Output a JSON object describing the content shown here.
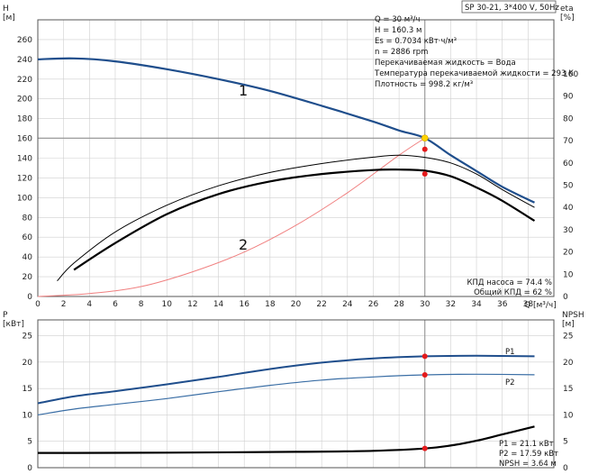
{
  "title_box": "SP 30-21, 3*400 V, 50Hz",
  "info_lines": [
    "Q = 30 м³/ч",
    "H = 160.3 м",
    "Es = 0.7034 кВт·ч/м³",
    "n = 2886 rpm",
    "Перекачиваемая жидкость = Вода",
    "Температура перекачиваемой жидкости = 293 K",
    "Плотность = 998.2 кг/м³"
  ],
  "efficiency_notes": [
    "КПД насоса = 74.4 %",
    "Общий КПД = 62 %"
  ],
  "power_notes": [
    "P1 = 21.1 кВт",
    "P2 = 17.59 кВт",
    "NPSH = 3.64 м"
  ],
  "curve_labels": [
    "1",
    "2"
  ],
  "colors": {
    "head": "#1f4e8c",
    "power": "#2b5d9a",
    "efficiency": "#000000",
    "system": "#f08080",
    "duty_point": "#e41a1c",
    "duty_marker_top": "#ffd400",
    "grid": "#888888"
  },
  "chart_data": [
    {
      "type": "line",
      "ylabel_left": "H",
      "ylabel_left_unit": "[м]",
      "ylabel_right": "eta",
      "ylabel_right_unit": "[%]",
      "xlabel": "Q [м³/ч]",
      "x_ticks": [
        "0",
        "2",
        "4",
        "6",
        "8",
        "10",
        "12",
        "14",
        "16",
        "18",
        "20",
        "22",
        "24",
        "26",
        "28",
        "30",
        "32",
        "34",
        "36",
        "38"
      ],
      "y_left_ticks": [
        "0",
        "20",
        "40",
        "60",
        "80",
        "100",
        "120",
        "140",
        "160",
        "180",
        "200",
        "220",
        "240",
        "260"
      ],
      "y_right_ticks": [
        "0",
        "10",
        "20",
        "30",
        "40",
        "50",
        "60",
        "70",
        "80",
        "90",
        "100"
      ],
      "xlim": [
        0,
        40
      ],
      "ylim_left": [
        0,
        280
      ],
      "ylim_right": [
        0,
        100
      ],
      "duty_q": 30,
      "duty_h": 160.3,
      "series": [
        {
          "name": "1",
          "axis": "left",
          "style": "head",
          "x": [
            0,
            2.8,
            6,
            10,
            14,
            18,
            22,
            26,
            28,
            30,
            32,
            34,
            36,
            38.5
          ],
          "y": [
            240,
            241,
            238,
            230,
            220,
            208,
            193,
            177,
            168,
            160.3,
            143,
            127,
            111,
            95
          ]
        },
        {
          "name": "2",
          "axis": "left",
          "style": "system",
          "x": [
            0,
            4,
            8,
            12,
            16,
            20,
            24,
            28,
            30
          ],
          "y": [
            0,
            3,
            10,
            25,
            45,
            72,
            105,
            143,
            160.3
          ]
        },
        {
          "axis": "right",
          "style": "eff_thick",
          "x": [
            2.8,
            6,
            10,
            14,
            18,
            22,
            26,
            28,
            30,
            32,
            34,
            36,
            38.5
          ],
          "y": [
            12,
            24,
            37,
            46,
            51.7,
            55,
            56.8,
            57,
            56.5,
            54,
            49,
            43,
            34
          ]
        },
        {
          "axis": "right",
          "style": "eff_thin",
          "x": [
            1.5,
            2.8,
            6,
            10,
            14,
            18,
            22,
            26,
            28,
            30,
            32,
            34,
            36,
            38.5
          ],
          "y": [
            7,
            15,
            29,
            41,
            49.7,
            55.7,
            59.7,
            62.6,
            63.5,
            62.5,
            60,
            55,
            48,
            40
          ]
        }
      ],
      "duty_markers": [
        {
          "x": 30,
          "y": 160.3,
          "axis": "left",
          "kind": "top"
        },
        {
          "x": 30,
          "y": 149,
          "axis": "left",
          "kind": "point"
        },
        {
          "x": 30,
          "y": 124,
          "axis": "left",
          "kind": "point"
        }
      ]
    },
    {
      "type": "line",
      "ylabel_left": "P",
      "ylabel_left_unit": "[кВт]",
      "ylabel_right": "NPSH",
      "ylabel_right_unit": "[м]",
      "y_left_ticks": [
        "0",
        "5",
        "10",
        "15",
        "20",
        "25"
      ],
      "y_right_ticks": [
        "0",
        "5",
        "10",
        "15",
        "20",
        "25"
      ],
      "xlim": [
        0,
        40
      ],
      "ylim_left": [
        0,
        28
      ],
      "series": [
        {
          "name": "P1",
          "axis": "left",
          "style": "p1",
          "x": [
            0,
            2.8,
            6,
            10,
            14,
            18,
            22,
            26,
            30,
            34,
            38.5
          ],
          "y": [
            12.2,
            13.5,
            14.5,
            15.8,
            17.2,
            18.7,
            19.9,
            20.7,
            21.1,
            21.2,
            21.1
          ]
        },
        {
          "name": "P2",
          "axis": "left",
          "style": "p2",
          "x": [
            0,
            2.8,
            6,
            10,
            14,
            18,
            22,
            26,
            30,
            34,
            38.5
          ],
          "y": [
            10,
            11.1,
            12.0,
            13.1,
            14.4,
            15.6,
            16.6,
            17.2,
            17.59,
            17.7,
            17.6
          ]
        },
        {
          "name": "NPSH",
          "axis": "left",
          "style": "npsh",
          "x": [
            0,
            2.8,
            10,
            20,
            26,
            30,
            32,
            34,
            36,
            38.5
          ],
          "y": [
            2.8,
            2.8,
            2.85,
            3.0,
            3.2,
            3.64,
            4.2,
            5.1,
            6.3,
            7.8
          ]
        }
      ],
      "duty_markers": [
        {
          "x": 30,
          "y": 21.1
        },
        {
          "x": 30,
          "y": 17.59
        },
        {
          "x": 30,
          "y": 3.64
        }
      ],
      "series_labels": [
        "P1",
        "P2"
      ]
    }
  ]
}
